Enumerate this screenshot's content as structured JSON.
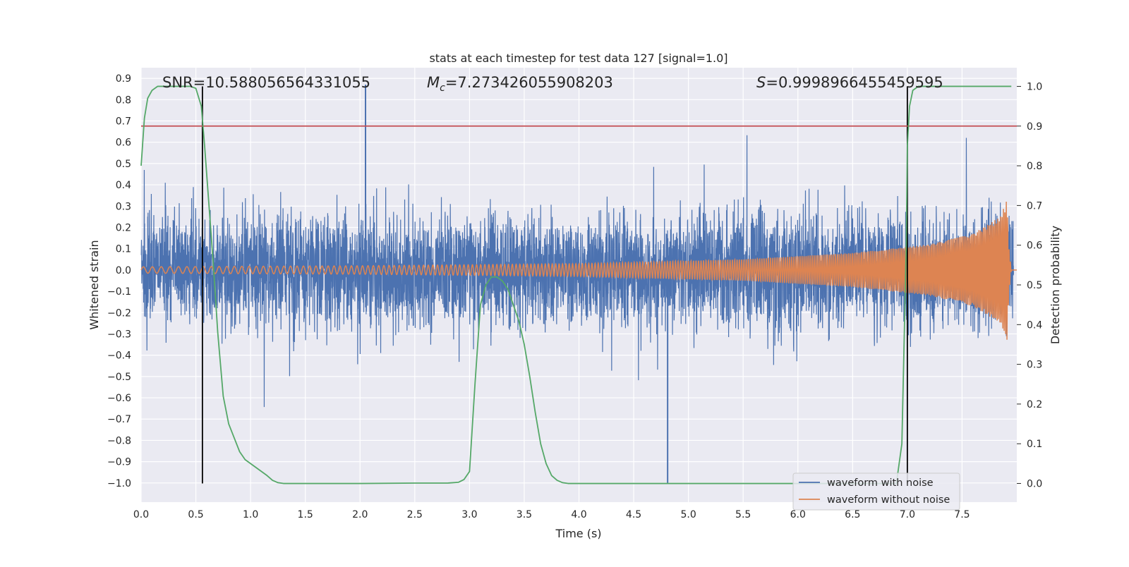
{
  "chart_data": {
    "type": "line",
    "title": "stats at each timestep for test data 127 [signal=1.0]",
    "xlabel": "Time (s)",
    "ylabel_left": "Whitened strain",
    "ylabel_right": "Detection probability",
    "xlim": [
      0.0,
      8.0
    ],
    "ylim_left": [
      -1.09,
      0.95
    ],
    "ylim_right": [
      -0.047,
      1.047
    ],
    "x_ticks": [
      0.0,
      0.5,
      1.0,
      1.5,
      2.0,
      2.5,
      3.0,
      3.5,
      4.0,
      4.5,
      5.0,
      5.5,
      6.0,
      6.5,
      7.0,
      7.5
    ],
    "x_tick_labels": [
      "0.0",
      "0.5",
      "1.0",
      "1.5",
      "2.0",
      "2.5",
      "3.0",
      "3.5",
      "4.0",
      "4.5",
      "5.0",
      "5.5",
      "6.0",
      "6.5",
      "7.0",
      "7.5"
    ],
    "y_left_ticks": [
      0.9,
      0.8,
      0.7,
      0.6,
      0.5,
      0.4,
      0.3,
      0.2,
      0.1,
      0.0,
      -0.1,
      -0.2,
      -0.3,
      -0.4,
      -0.5,
      -0.6,
      -0.7,
      -0.8,
      -0.9,
      -1.0
    ],
    "y_left_tick_labels": [
      "0.9",
      "0.8",
      "0.7",
      "0.6",
      "0.5",
      "0.4",
      "0.3",
      "0.2",
      "0.1",
      "0.0",
      "−0.1",
      "−0.2",
      "−0.3",
      "−0.4",
      "−0.5",
      "−0.6",
      "−0.7",
      "−0.8",
      "−0.9",
      "−1.0"
    ],
    "y_right_ticks": [
      1.0,
      0.9,
      0.8,
      0.7,
      0.6,
      0.5,
      0.4,
      0.3,
      0.2,
      0.1,
      0.0
    ],
    "y_right_tick_labels": [
      "1.0",
      "0.9",
      "0.8",
      "0.7",
      "0.6",
      "0.5",
      "0.4",
      "0.3",
      "0.2",
      "0.1",
      "0.0"
    ],
    "annotations": {
      "snr": "SNR=10.588056564331055",
      "mc_symbol": "M",
      "mc_sub": "c",
      "mc_value": "=7.273426055908203",
      "s_symbol": "S",
      "s_value": "=0.9998966455459595"
    },
    "series": [
      {
        "name": "waveform with noise",
        "color": "#4c72b0",
        "axis": "left",
        "kind": "noise",
        "envelope_upper_max": 0.87,
        "envelope_lower_min": -1.0,
        "x_range": [
          0.0,
          7.97
        ]
      },
      {
        "name": "waveform without noise",
        "color": "#dd8452",
        "axis": "left",
        "kind": "chirp",
        "amplitude_points": [
          [
            0.0,
            0.015
          ],
          [
            2.0,
            0.02
          ],
          [
            4.0,
            0.03
          ],
          [
            5.5,
            0.05
          ],
          [
            6.5,
            0.08
          ],
          [
            7.2,
            0.12
          ],
          [
            7.6,
            0.17
          ],
          [
            7.85,
            0.25
          ],
          [
            7.91,
            0.33
          ],
          [
            7.93,
            0.1
          ],
          [
            7.95,
            0.0
          ],
          [
            8.0,
            0.0
          ]
        ]
      },
      {
        "name": "detection probability",
        "color": "#55a868",
        "axis": "right",
        "x": [
          0.0,
          0.03,
          0.06,
          0.1,
          0.15,
          0.2,
          0.3,
          0.4,
          0.45,
          0.5,
          0.55,
          0.58,
          0.62,
          0.66,
          0.7,
          0.75,
          0.8,
          0.9,
          0.95,
          1.0,
          1.05,
          1.1,
          1.15,
          1.2,
          1.25,
          1.3,
          1.5,
          2.0,
          2.5,
          2.8,
          2.9,
          2.95,
          3.0,
          3.05,
          3.1,
          3.15,
          3.2,
          3.25,
          3.3,
          3.35,
          3.4,
          3.45,
          3.5,
          3.55,
          3.6,
          3.65,
          3.7,
          3.75,
          3.8,
          3.85,
          3.9,
          4.0,
          5.0,
          6.0,
          6.7,
          6.9,
          6.95,
          6.99,
          7.0,
          7.02,
          7.05,
          7.1,
          7.5,
          7.95
        ],
        "y": [
          0.8,
          0.92,
          0.97,
          0.99,
          1.0,
          1.0,
          1.0,
          1.0,
          1.0,
          0.995,
          0.95,
          0.85,
          0.7,
          0.55,
          0.38,
          0.22,
          0.15,
          0.08,
          0.06,
          0.05,
          0.04,
          0.03,
          0.02,
          0.008,
          0.002,
          0.0,
          0.0,
          0.0,
          0.001,
          0.001,
          0.003,
          0.01,
          0.03,
          0.25,
          0.45,
          0.5,
          0.52,
          0.52,
          0.51,
          0.49,
          0.45,
          0.41,
          0.35,
          0.27,
          0.18,
          0.1,
          0.05,
          0.02,
          0.008,
          0.002,
          0.0,
          0.0,
          0.0,
          0.0,
          0.0,
          0.0,
          0.1,
          0.6,
          0.85,
          0.95,
          0.99,
          1.0,
          1.0,
          1.0
        ]
      }
    ],
    "threshold": {
      "value": 0.9,
      "axis": "right",
      "color": "#c44e52"
    },
    "vertical_markers": [
      0.56,
      7.0
    ],
    "legend": {
      "position": "lower-right",
      "entries": [
        "waveform with noise",
        "waveform without noise"
      ]
    },
    "style": {
      "background": "#eaeaf2",
      "grid": true
    }
  }
}
